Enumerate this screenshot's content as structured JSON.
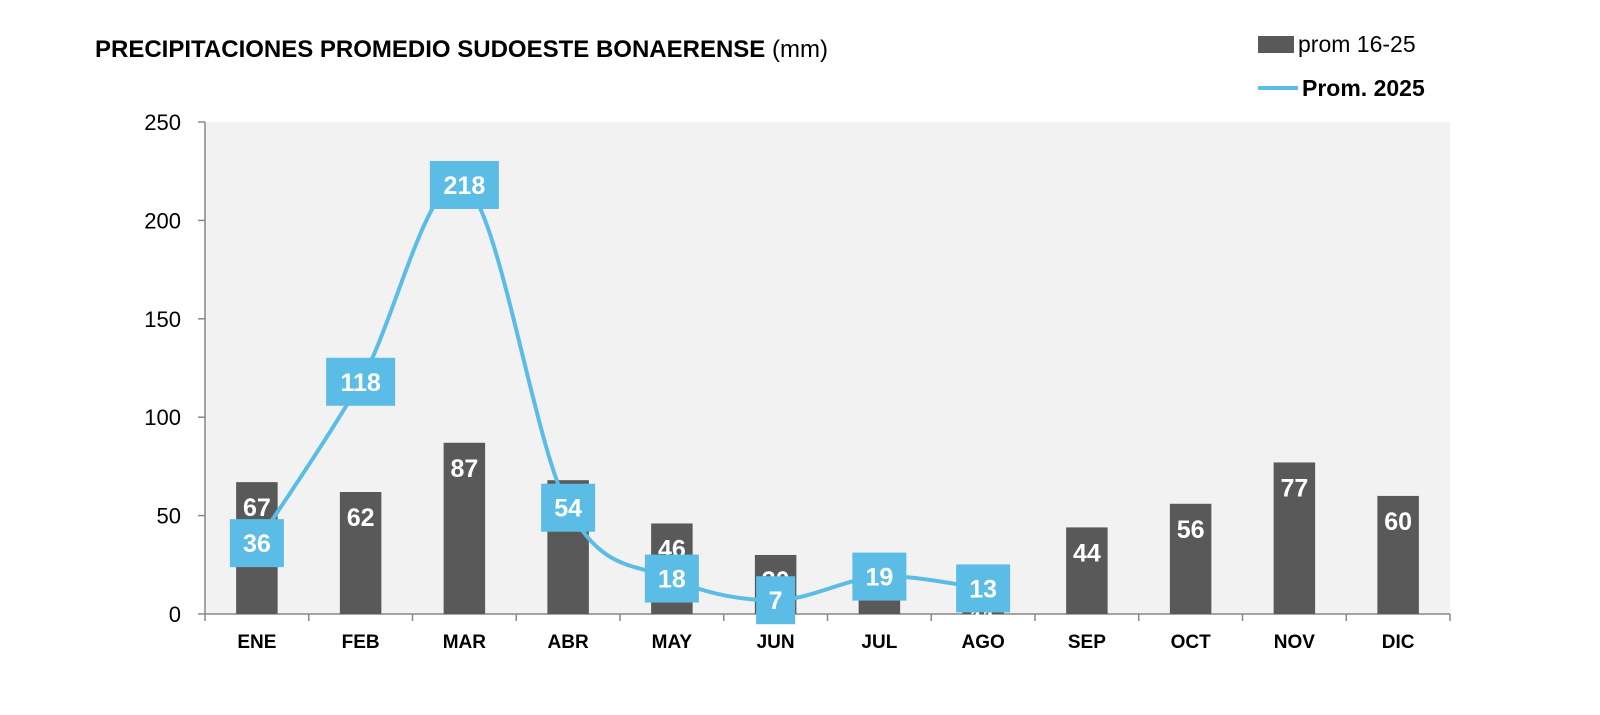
{
  "chart_data": {
    "type": "bar",
    "title_bold": "PRECIPITACIONES PROMEDIO SUDOESTE BONAERENSE",
    "title_unit": "(mm)",
    "categories": [
      "ENE",
      "FEB",
      "MAR",
      "ABR",
      "MAY",
      "JUN",
      "JUL",
      "AGO",
      "SEP",
      "OCT",
      "NOV",
      "DIC"
    ],
    "series": [
      {
        "name": "prom 16-25",
        "kind": "bar",
        "color": "#595959",
        "values": [
          67,
          62,
          87,
          68,
          46,
          30,
          26,
          11,
          44,
          56,
          77,
          60
        ]
      },
      {
        "name": "Prom. 2025",
        "kind": "line",
        "smooth": true,
        "color": "#5bbde6",
        "values": [
          36,
          118,
          218,
          54,
          18,
          7,
          19,
          13,
          null,
          null,
          null,
          null
        ]
      }
    ],
    "yticks": [
      0,
      50,
      100,
      150,
      200,
      250
    ],
    "ylim": [
      0,
      250
    ],
    "plot_background": "#f2f2f2",
    "legend_position": "top-right"
  }
}
